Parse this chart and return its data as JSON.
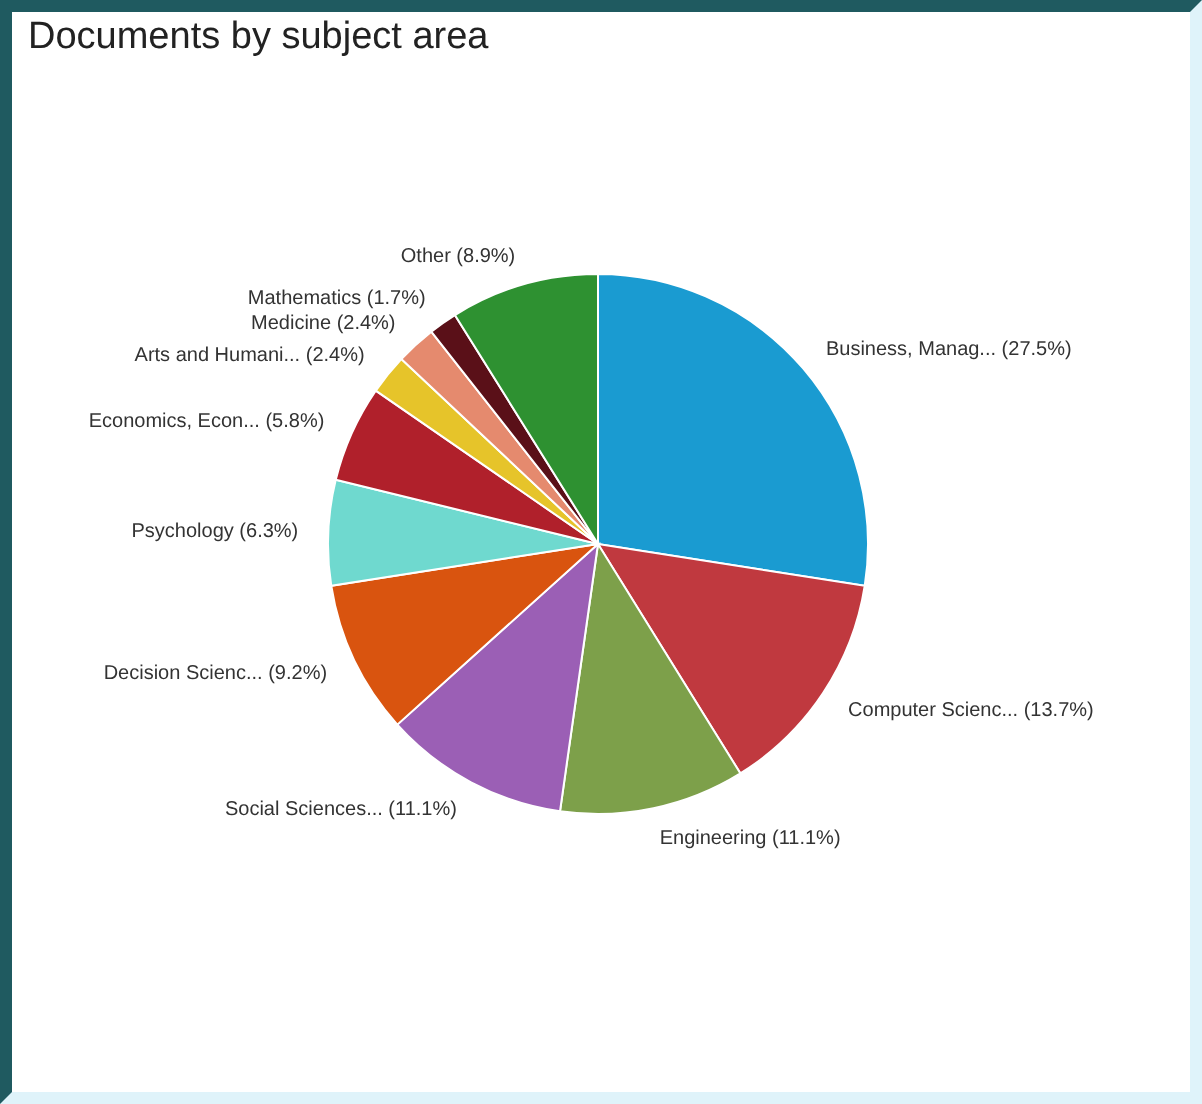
{
  "chart_data": {
    "type": "pie",
    "title": "Documents by subject area",
    "categories": [
      "Business, Manag...",
      "Computer Scienc...",
      "Engineering",
      "Social Sciences...",
      "Decision Scienc...",
      "Psychology",
      "Economics, Econ...",
      "Arts and Humani...",
      "Medicine",
      "Mathematics",
      "Other"
    ],
    "values": [
      27.5,
      13.7,
      11.1,
      11.1,
      9.2,
      6.3,
      5.8,
      2.4,
      2.4,
      1.7,
      8.9
    ],
    "value_labels": [
      "(27.5%)",
      "(13.7%)",
      "(11.1%)",
      "(11.1%)",
      "(9.2%)",
      "(6.3%)",
      "(5.8%)",
      "(2.4%)",
      "(2.4%)",
      "(1.7%)",
      "(8.9%)"
    ],
    "colors": [
      "#1a9bd1",
      "#c0393f",
      "#7da04a",
      "#9b5fb5",
      "#d9540f",
      "#6fd9cf",
      "#b0202b",
      "#e6c42a",
      "#e58a6e",
      "#5a1018",
      "#2e9131"
    ]
  }
}
